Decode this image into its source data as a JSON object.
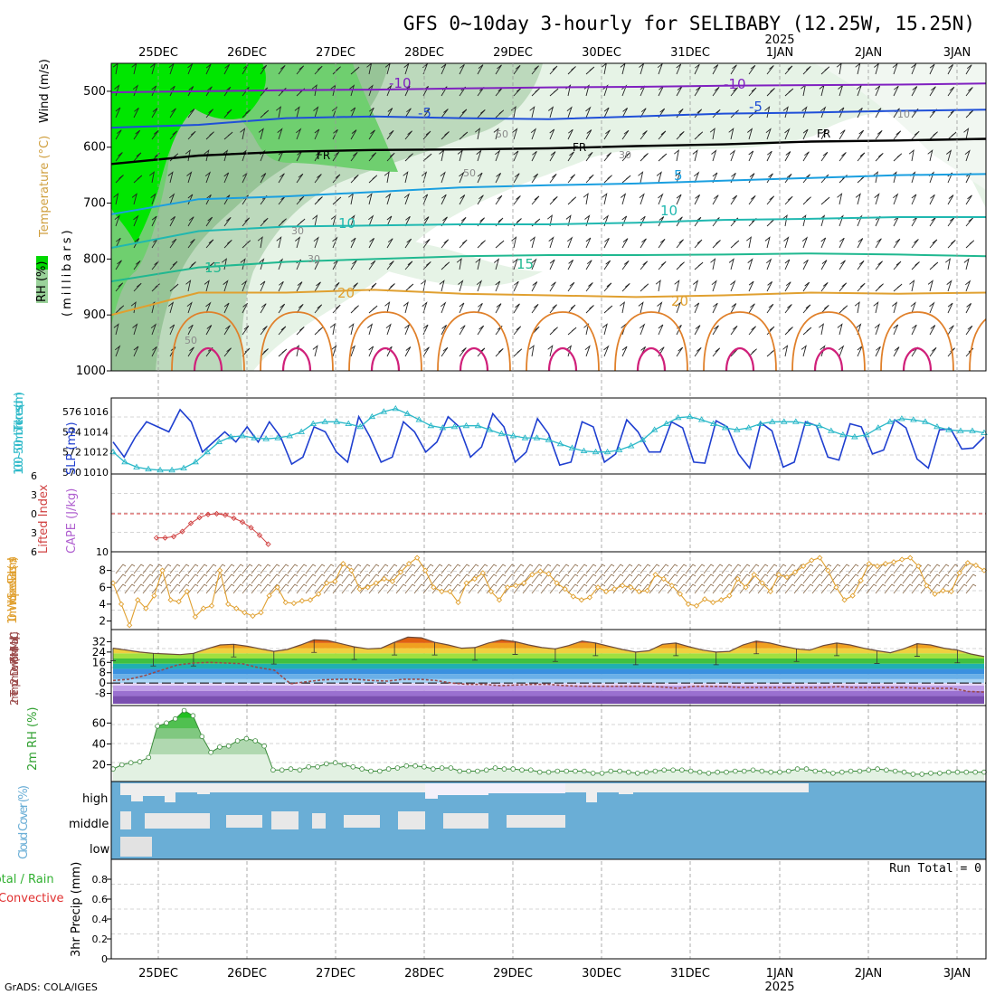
{
  "title": "GFS 0~10day 3-hourly for SELIBABY (12.25W, 15.25N)",
  "credit": "GrADS: COLA/IGES",
  "colors": {
    "rh_light": "#e6f3e6",
    "rh_mid": "#b9d8b9",
    "rh_dark": "#8fc28f",
    "rh_green": "#50d050",
    "rh_bright": "#00e000",
    "slp": "#1f3fd0",
    "thickness": "#2ab8c8",
    "lifted_index": "#d04040",
    "cape": "#b060d0",
    "wind_speed": "#e0a030",
    "barbs": "#8a6a4a",
    "dewpoint": "#9a4a4a",
    "rh2m": "#30a030",
    "cloud": "#6aaed6",
    "cloud_clear": "#eeeeee",
    "precip_total": "#30b030",
    "precip_conv": "#e03030"
  },
  "chart_data": {
    "date_axis": {
      "labels": [
        "25DEC",
        "26DEC",
        "27DEC",
        "28DEC",
        "29DEC",
        "30DEC",
        "31DEC",
        "1JAN",
        "2JAN",
        "3JAN"
      ],
      "year_label": "2025",
      "year_at": "1JAN"
    },
    "upper_air": {
      "type": "contour",
      "ylabel_rh": "RH (%)",
      "ylabel_temp": "Temperature (°C)",
      "ylabel_wind": "Wind (m/s)",
      "ylabel_units": "(millibars)",
      "y_ticks": [
        500,
        600,
        700,
        800,
        900,
        1000
      ],
      "ylim": [
        1000,
        450
      ],
      "isotherms": [
        {
          "label": "-10",
          "color": "#8020c0",
          "levels_mb": [
            502,
            500,
            498,
            497,
            495,
            493,
            492,
            490,
            489,
            488,
            486
          ]
        },
        {
          "label": "-5",
          "color": "#1f4fd8",
          "levels_mb": [
            565,
            560,
            548,
            545,
            548,
            550,
            545,
            540,
            538,
            535,
            533
          ]
        },
        {
          "label": "FR",
          "color": "#000000",
          "levels_mb": [
            630,
            615,
            608,
            605,
            604,
            602,
            598,
            595,
            590,
            588,
            585
          ]
        },
        {
          "label": "5",
          "color": "#1a9fe0",
          "levels_mb": [
            720,
            693,
            688,
            680,
            672,
            668,
            665,
            660,
            655,
            650,
            648
          ]
        },
        {
          "label": "10",
          "color": "#20b8b0",
          "levels_mb": [
            780,
            750,
            742,
            740,
            738,
            738,
            735,
            730,
            728,
            725,
            725
          ]
        },
        {
          "label": "15",
          "color": "#20b890",
          "levels_mb": [
            840,
            815,
            805,
            800,
            795,
            793,
            793,
            792,
            790,
            792,
            795
          ]
        },
        {
          "label": "20",
          "color": "#e0a030",
          "levels_mb": [
            900,
            860,
            860,
            855,
            862,
            865,
            868,
            865,
            860,
            862,
            860
          ]
        }
      ],
      "rh_labels": [
        "50",
        "30",
        "50",
        "30",
        "50",
        "10",
        "30"
      ]
    },
    "slp_thickness": {
      "type": "line",
      "ylabel_left": "1000~500mb Thickness (dm)",
      "ylabel_right": "SLP (mb)",
      "left_ticks": [
        570,
        572,
        574,
        576
      ],
      "right_ticks": [
        1010,
        1012,
        1014,
        1016
      ],
      "series": [
        {
          "name": "SLP",
          "axis": "right",
          "values": [
            1013,
            1011.5,
            1013.5,
            1015,
            1014.5,
            1014,
            1016.2,
            1015,
            1012,
            1013,
            1014,
            1013,
            1014.5,
            1013,
            1015,
            1013.5,
            1010.8,
            1011.5,
            1014.5,
            1014,
            1012,
            1011,
            1015.5,
            1013.5,
            1011,
            1011.5,
            1015,
            1014,
            1012,
            1013,
            1015.5,
            1014.5,
            1011.5,
            1012.5,
            1015.8,
            1014.5,
            1011,
            1012,
            1015.3,
            1013.8,
            1010.7,
            1011,
            1015,
            1014.5,
            1011,
            1011.8,
            1015.2,
            1014,
            1012,
            1012,
            1015,
            1014.4,
            1011,
            1010.9,
            1015.1,
            1014.5,
            1011.8,
            1010.4,
            1014.9,
            1014.1,
            1010.5,
            1011,
            1015,
            1014.6,
            1011.5,
            1011.2,
            1014.8,
            1014.5,
            1011.8,
            1012.2,
            1015.2,
            1014.4,
            1011.3,
            1010.4,
            1014.2,
            1014.3,
            1012.3,
            1012.4,
            1013.5
          ]
        },
        {
          "name": "Thickness",
          "axis": "left",
          "values": [
            572,
            571,
            570.5,
            570.3,
            570.2,
            570.2,
            570.4,
            571,
            572,
            573,
            573.5,
            573.6,
            573.4,
            573.3,
            573.4,
            573.6,
            574,
            574.8,
            575,
            575,
            574.8,
            574.5,
            575.5,
            576,
            576.3,
            575.8,
            575.2,
            574.6,
            574.4,
            574.5,
            574.6,
            574.6,
            574.2,
            573.8,
            573.6,
            573.4,
            573.4,
            573.2,
            572.8,
            572.4,
            572.1,
            572,
            572,
            572.2,
            572.6,
            573.2,
            574.2,
            574.8,
            575.4,
            575.5,
            575.2,
            574.8,
            574.4,
            574.2,
            574.4,
            574.8,
            575,
            575,
            575,
            574.8,
            574.6,
            574.1,
            573.7,
            573.5,
            573.7,
            574.4,
            575,
            575.3,
            575.2,
            575,
            574.5,
            574.2,
            574.1,
            574.1,
            573.9
          ]
        }
      ]
    },
    "lifted_index": {
      "type": "line",
      "ylabel_left": "Lifted Index",
      "ylabel_right": "CAPE (J/kg)",
      "left_ticks": [
        "6",
        "3",
        "0",
        "3",
        "6"
      ],
      "right_ticks": [
        "10"
      ],
      "series": [
        {
          "name": "Lifted Index",
          "values": [
            3.8,
            3.8,
            3.6,
            2.8,
            1.5,
            0.6,
            0.1,
            0,
            0.2,
            0.7,
            1.3,
            2.2,
            3.4,
            4.8
          ]
        }
      ]
    },
    "wind10m": {
      "type": "line",
      "ylabel": "10m Wind Speed & Barbs (m/s)",
      "y_ticks": [
        2,
        4,
        6,
        8
      ],
      "ylim": [
        1.2,
        10
      ],
      "series": [
        {
          "name": "Speed",
          "values": [
            6.5,
            4,
            1.5,
            4.5,
            3.5,
            5,
            8,
            4.5,
            4.3,
            5.5,
            2.5,
            3.5,
            3.8,
            8,
            4,
            3.5,
            3,
            2.6,
            3,
            5,
            6,
            4.2,
            4.1,
            4.4,
            4.5,
            5.2,
            6.5,
            6.7,
            8.8,
            8,
            5.8,
            6,
            6.5,
            7,
            6.7,
            7.8,
            8.8,
            9.5,
            8,
            6,
            5.5,
            5.5,
            4.2,
            6.5,
            7,
            7.7,
            5.5,
            4.5,
            6,
            6.2,
            6.5,
            7.5,
            7.9,
            7.6,
            6.5,
            5.8,
            4.9,
            4.5,
            4.8,
            6,
            5.5,
            5.8,
            6.2,
            6,
            5.5,
            5.6,
            7.5,
            7,
            6.2,
            5.2,
            4,
            3.8,
            4.6,
            4.2,
            4.5,
            5,
            7,
            6,
            7.5,
            6.5,
            5.5,
            7.5,
            7.2,
            7.8,
            8.5,
            9.2,
            9.5,
            8,
            6,
            4.5,
            5,
            6.8,
            8.8,
            8.5,
            8.8,
            9,
            9.3,
            9.5,
            8.5,
            6.2,
            5.2,
            5.6,
            5.5,
            7.7,
            8.9,
            8.6,
            8
          ]
        }
      ]
    },
    "temp2m": {
      "type": "area",
      "ylabel": "2m Temp 2m DewPt (6hr Min/Max) (°C)",
      "y_ticks": [
        -8,
        0,
        8,
        16,
        24,
        32
      ],
      "ylim": [
        -16,
        40
      ],
      "series": [
        {
          "name": "Temp",
          "values": [
            27,
            25.5,
            24,
            23,
            22.5,
            22,
            23,
            26.5,
            29.5,
            30,
            28.5,
            26.5,
            24.5,
            26,
            29.5,
            33.5,
            33,
            30.5,
            28,
            26.5,
            27,
            31.5,
            35.5,
            35,
            31.5,
            29.5,
            27,
            27.5,
            31,
            33.5,
            32,
            29.5,
            27.5,
            26.5,
            29,
            32.5,
            31,
            28.5,
            26,
            24,
            25,
            30,
            31,
            28,
            25.5,
            24,
            24.5,
            29.5,
            32.5,
            31,
            28.5,
            26.5,
            25.5,
            29,
            31,
            29.5,
            27,
            25,
            23.5,
            26.5,
            30.5,
            29.5,
            27,
            25.5,
            22.5,
            20.5
          ]
        },
        {
          "name": "DewPt",
          "values": [
            2,
            3,
            6,
            10,
            14,
            15.5,
            16,
            15.5,
            15,
            12,
            10,
            -0.5,
            1,
            2.5,
            3,
            3,
            2,
            1.5,
            3,
            3,
            2,
            0,
            -1,
            -1,
            -2,
            -1.5,
            -1,
            -1,
            -2,
            -2.5,
            -2.5,
            -2.5,
            -2.5,
            -2.5,
            -3,
            -4,
            -2.5,
            -2.5,
            -2.8,
            -3.5,
            -3.5,
            -3.5,
            -3.5,
            -3.5,
            -3.5,
            -2.8,
            -3.5,
            -3.5,
            -3.5,
            -3.5,
            -4,
            -4,
            -4,
            -6.5,
            -7
          ]
        }
      ]
    },
    "rh2m": {
      "type": "area",
      "ylabel": "2m RH (%)",
      "y_ticks": [
        20,
        40,
        60
      ],
      "ylim": [
        4,
        75
      ],
      "series": [
        {
          "name": "RH",
          "values": [
            16,
            20,
            22,
            23,
            27,
            57,
            60,
            64,
            72,
            67,
            47,
            32,
            37,
            38,
            43,
            45,
            43,
            38,
            15,
            15,
            16,
            15,
            18,
            18,
            21,
            22,
            20,
            18,
            16,
            14,
            14,
            16,
            17,
            19,
            19,
            18,
            16,
            17,
            17,
            14,
            14,
            14,
            15,
            17,
            16,
            16,
            15,
            15,
            13,
            13,
            14,
            14,
            14,
            14,
            12,
            12,
            14,
            14,
            13,
            12,
            13,
            14,
            15,
            15,
            15,
            14,
            13,
            12,
            13,
            13,
            14,
            14,
            15,
            14,
            13,
            13,
            14,
            16,
            16,
            14,
            14,
            12,
            13,
            14,
            14,
            15,
            16,
            15,
            14,
            13,
            11,
            11,
            12,
            12,
            13,
            13,
            13,
            13,
            13
          ]
        }
      ]
    },
    "cloud": {
      "type": "heatmap",
      "ylabel": "Cloud Cover (%)",
      "rows": [
        "high",
        "middle",
        "low"
      ]
    },
    "precip": {
      "type": "bar",
      "ylabel_left": "Total / Rain",
      "ylabel_left2": "Convective",
      "ylabel": "3hr Precip (mm)",
      "y_ticks": [
        "0",
        "0.2",
        "0.4",
        "0.6",
        "0.8"
      ],
      "ylim": [
        0,
        1
      ],
      "run_total_label": "Run Total = 0",
      "values": []
    }
  }
}
